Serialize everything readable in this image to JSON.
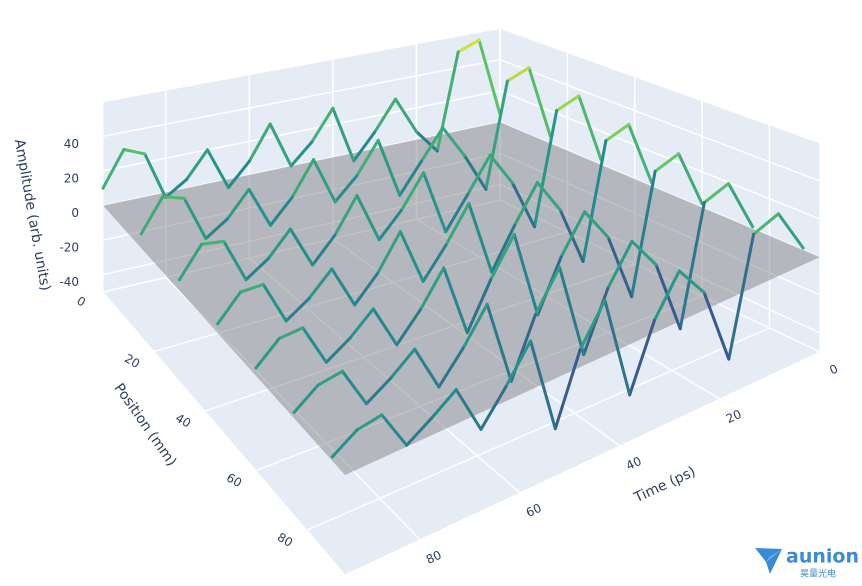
{
  "chart_data": {
    "type": "line3d",
    "xaxis_title": "Time (ps)",
    "yaxis_title": "Position (mm)",
    "zaxis_title": "Amplitude (arb. units)",
    "xlim": [
      0,
      95
    ],
    "ylim": [
      0,
      95
    ],
    "zlim": [
      -50,
      60
    ],
    "xticks": [
      0,
      20,
      40,
      60,
      80
    ],
    "yticks": [
      0,
      20,
      40,
      60,
      80
    ],
    "zticks": [
      -40,
      -20,
      0,
      20,
      40
    ],
    "grid": true,
    "colorscale": [
      "#440154",
      "#3b528b",
      "#21918c",
      "#5ec962",
      "#fde725"
    ],
    "x": [
      0,
      5,
      10,
      15,
      20,
      25,
      30,
      35,
      40,
      45,
      50,
      55,
      60,
      65,
      70,
      75,
      80,
      85,
      90,
      95
    ],
    "series": [
      {
        "position": 0,
        "values": [
          5,
          55,
          50,
          -10,
          5,
          28,
          10,
          -5,
          30,
          12,
          0,
          28,
          8,
          -5,
          20,
          5,
          -3,
          25,
          30,
          10
        ]
      },
      {
        "position": 15,
        "values": [
          4,
          50,
          45,
          -18,
          6,
          26,
          9,
          -8,
          28,
          10,
          -2,
          26,
          7,
          -6,
          18,
          4,
          -4,
          22,
          26,
          8
        ]
      },
      {
        "position": 30,
        "values": [
          3,
          45,
          40,
          -25,
          5,
          25,
          6,
          -12,
          26,
          8,
          -5,
          24,
          5,
          -8,
          16,
          3,
          -5,
          20,
          22,
          6
        ]
      },
      {
        "position": 45,
        "values": [
          2,
          40,
          35,
          -30,
          4,
          24,
          4,
          -18,
          25,
          6,
          -10,
          22,
          3,
          -10,
          14,
          2,
          -6,
          18,
          18,
          5
        ]
      },
      {
        "position": 60,
        "values": [
          2,
          35,
          30,
          -35,
          3,
          22,
          2,
          -25,
          24,
          4,
          -20,
          20,
          2,
          -12,
          12,
          1,
          -7,
          16,
          15,
          4
        ]
      },
      {
        "position": 75,
        "values": [
          1,
          30,
          25,
          -38,
          2,
          20,
          0,
          -30,
          22,
          2,
          -28,
          18,
          0,
          -15,
          10,
          0,
          -8,
          14,
          12,
          3
        ]
      },
      {
        "position": 90,
        "values": [
          1,
          25,
          20,
          -40,
          1,
          18,
          -2,
          -35,
          20,
          0,
          -35,
          16,
          -2,
          -18,
          8,
          -1,
          -9,
          12,
          10,
          2
        ]
      }
    ]
  },
  "logo": {
    "name": "aunion",
    "subtitle": "昊量光电"
  }
}
